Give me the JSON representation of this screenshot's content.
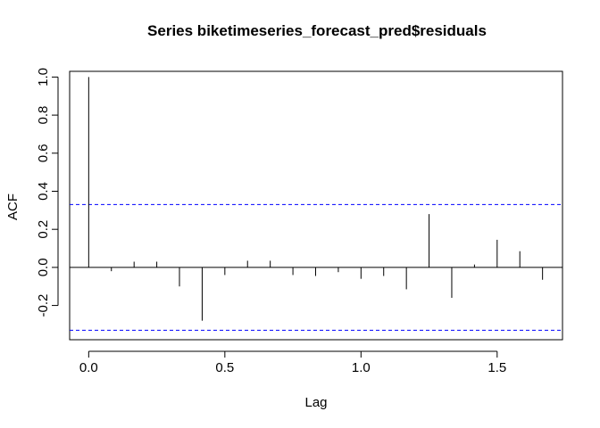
{
  "chart_data": {
    "type": "bar",
    "style": "acf-spike-plot",
    "title": "Series  biketimeseries_forecast_pred$residuals",
    "xlabel": "Lag",
    "ylabel": "ACF",
    "xlim": [
      -0.07,
      1.74
    ],
    "ylim": [
      -0.38,
      1.03
    ],
    "x_ticks": [
      {
        "value": 0.0,
        "label": "0.0"
      },
      {
        "value": 0.5,
        "label": "0.5"
      },
      {
        "value": 1.0,
        "label": "1.0"
      },
      {
        "value": 1.5,
        "label": "1.5"
      }
    ],
    "y_ticks": [
      {
        "value": -0.2,
        "label": "-0.2"
      },
      {
        "value": 0.0,
        "label": "0.0"
      },
      {
        "value": 0.2,
        "label": "0.2"
      },
      {
        "value": 0.4,
        "label": "0.4"
      },
      {
        "value": 0.6,
        "label": "0.6"
      },
      {
        "value": 0.8,
        "label": "0.8"
      },
      {
        "value": 1.0,
        "label": "1.0"
      }
    ],
    "lags": [
      0.0,
      0.0833,
      0.1667,
      0.25,
      0.3333,
      0.4167,
      0.5,
      0.5833,
      0.6667,
      0.75,
      0.8333,
      0.9167,
      1.0,
      1.0833,
      1.1667,
      1.25,
      1.3333,
      1.4167,
      1.5,
      1.5833,
      1.6667
    ],
    "values": [
      1.0,
      -0.02,
      0.03,
      0.03,
      -0.1,
      -0.28,
      -0.04,
      0.035,
      0.035,
      -0.04,
      -0.045,
      -0.025,
      -0.06,
      -0.045,
      -0.115,
      0.28,
      -0.16,
      0.015,
      0.145,
      0.085,
      -0.065
    ],
    "confidence_bounds": [
      0.33,
      -0.33
    ],
    "colors": {
      "spike": "#000000",
      "confidence": "#0000ff",
      "zero_line": "#000000"
    },
    "grid": false,
    "legend": "none"
  }
}
